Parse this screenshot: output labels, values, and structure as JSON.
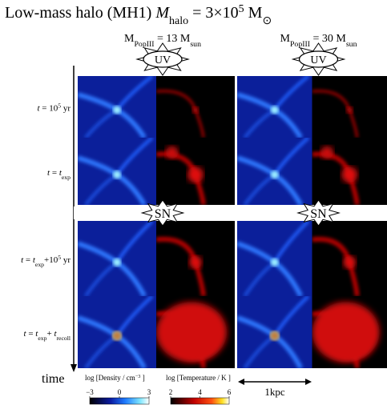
{
  "header": {
    "title": [
      {
        "text": "Low-mass halo (MH1) "
      },
      {
        "text": "M",
        "style": "italic"
      },
      {
        "text": "halo",
        "style": "sub"
      },
      {
        "text": " = 3×10"
      },
      {
        "text": "5",
        "style": "sup"
      },
      {
        "text": " M"
      },
      {
        "text": "⊙",
        "style": "sub"
      }
    ]
  },
  "columns": [
    [
      {
        "text": "M"
      },
      {
        "text": "PopIII",
        "style": "sub"
      },
      {
        "text": " = 13 M"
      },
      {
        "text": "sun",
        "style": "sub"
      }
    ],
    [
      {
        "text": "M"
      },
      {
        "text": "PopIII",
        "style": "sub"
      },
      {
        "text": " = 30 M"
      },
      {
        "text": "sun",
        "style": "sub"
      }
    ]
  ],
  "rows": [
    [
      {
        "text": "t",
        "style": "italic"
      },
      {
        "text": " = 10"
      },
      {
        "text": "5",
        "style": "sup"
      },
      {
        "text": " yr"
      }
    ],
    [
      {
        "text": "t",
        "style": "italic"
      },
      {
        "text": " = "
      },
      {
        "text": "t",
        "style": "italic"
      },
      {
        "text": "exp",
        "style": "sub"
      }
    ],
    [
      {
        "text": "t",
        "style": "italic"
      },
      {
        "text": " = "
      },
      {
        "text": "t",
        "style": "italic"
      },
      {
        "text": "exp",
        "style": "sub"
      },
      {
        "text": "+10"
      },
      {
        "text": "5",
        "style": "sup"
      },
      {
        "text": " yr"
      }
    ],
    [
      {
        "text": "t",
        "style": "italic"
      },
      {
        "text": " = "
      },
      {
        "text": "t",
        "style": "italic"
      },
      {
        "text": "exp",
        "style": "sub"
      },
      {
        "text": "+ "
      },
      {
        "text": "t",
        "style": "italic"
      },
      {
        "text": "recoll",
        "style": "sub"
      }
    ]
  ],
  "bursts": {
    "uv": "UV",
    "sn": "SN"
  },
  "colorbars": [
    {
      "label": [
        {
          "text": "log [Density / cm"
        },
        {
          "text": "−3",
          "style": "sup"
        },
        {
          "text": " ]"
        }
      ],
      "range": [
        -3,
        3
      ],
      "ticks": [
        {
          "value": -3,
          "label": "−3"
        },
        0,
        3
      ]
    },
    {
      "label": [
        {
          "text": "log [Temperature / K ]"
        }
      ],
      "range": [
        2,
        6
      ],
      "ticks": [
        2,
        4,
        6
      ]
    }
  ],
  "scale_bar": "1kpc",
  "time_label": "time"
}
